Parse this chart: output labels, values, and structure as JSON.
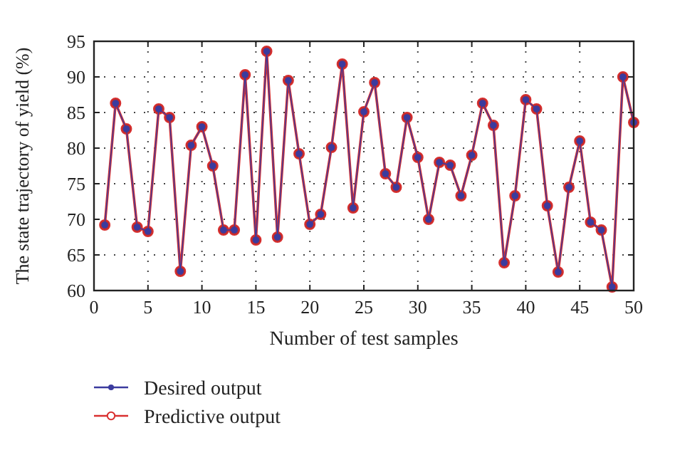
{
  "chart_data": {
    "type": "line",
    "xlabel": "Number of test samples",
    "ylabel": "The state trajectory of yield (%)",
    "x": [
      1,
      2,
      3,
      4,
      5,
      6,
      7,
      8,
      9,
      10,
      11,
      12,
      13,
      14,
      15,
      16,
      17,
      18,
      19,
      20,
      21,
      22,
      23,
      24,
      25,
      26,
      27,
      28,
      29,
      30,
      31,
      32,
      33,
      34,
      35,
      36,
      37,
      38,
      39,
      40,
      41,
      42,
      43,
      44,
      45,
      46,
      47,
      48,
      49,
      50
    ],
    "series": [
      {
        "name": "Desired output",
        "color": "#3b3b9e",
        "marker": "circle",
        "values": [
          69.2,
          86.3,
          82.7,
          68.9,
          68.3,
          85.5,
          84.3,
          62.7,
          80.4,
          83.0,
          77.5,
          68.5,
          68.5,
          90.3,
          67.1,
          93.6,
          67.5,
          89.5,
          79.2,
          69.3,
          70.7,
          80.1,
          91.8,
          71.6,
          85.1,
          89.2,
          76.4,
          74.5,
          84.3,
          78.7,
          70.0,
          78.0,
          77.6,
          73.3,
          79.0,
          86.3,
          83.2,
          63.9,
          73.3,
          86.8,
          85.5,
          71.9,
          62.6,
          74.5,
          81.0,
          69.6,
          68.5,
          60.5,
          90.0,
          83.6
        ]
      },
      {
        "name": "Predictive output",
        "color": "#d93030",
        "marker": "circle",
        "values": [
          69.2,
          86.3,
          82.7,
          68.9,
          68.3,
          85.5,
          84.3,
          62.7,
          80.4,
          83.0,
          77.5,
          68.5,
          68.5,
          90.3,
          67.1,
          93.6,
          67.5,
          89.5,
          79.2,
          69.3,
          70.7,
          80.1,
          91.8,
          71.6,
          85.1,
          89.2,
          76.4,
          74.5,
          84.3,
          78.7,
          70.0,
          78.0,
          77.6,
          73.3,
          79.0,
          86.3,
          83.2,
          63.9,
          73.3,
          86.8,
          85.5,
          71.9,
          62.6,
          74.5,
          81.0,
          69.6,
          68.5,
          60.5,
          90.0,
          83.6
        ]
      }
    ],
    "xlim": [
      0,
      50
    ],
    "xticks": [
      0,
      5,
      10,
      15,
      20,
      25,
      30,
      35,
      40,
      45,
      50
    ],
    "ylim": [
      60,
      95
    ],
    "yticks": [
      60,
      65,
      70,
      75,
      80,
      85,
      90,
      95
    ],
    "grid": true,
    "legend": "bottom"
  }
}
